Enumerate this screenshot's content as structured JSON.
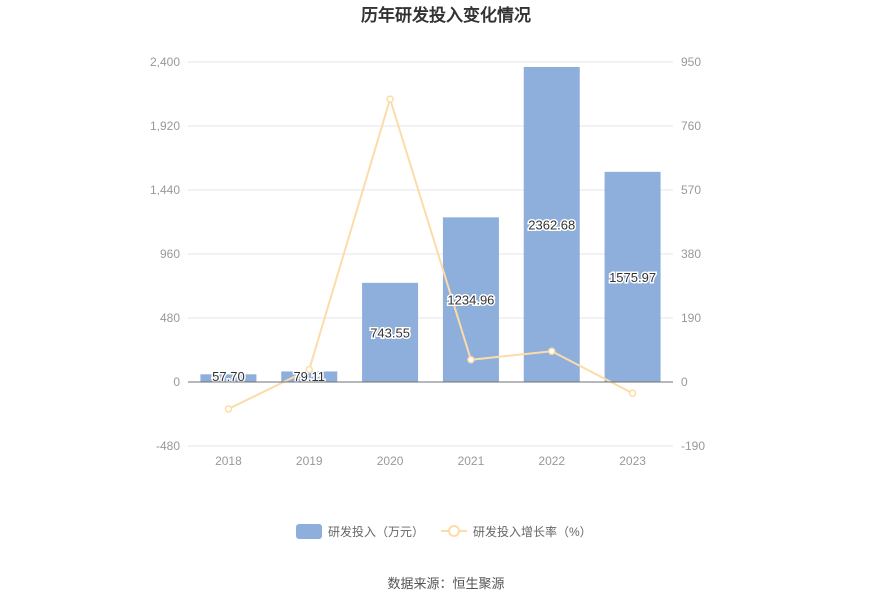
{
  "chart_data": {
    "type": "bar",
    "title": "历年研发投入变化情况",
    "categories": [
      "2018",
      "2019",
      "2020",
      "2021",
      "2022",
      "2023"
    ],
    "series": [
      {
        "name": "研发投入（万元）",
        "type": "bar",
        "axis": "left",
        "values": [
          57.7,
          79.11,
          743.55,
          1234.96,
          2362.68,
          1575.97
        ],
        "labels": [
          "57.70",
          "79.11",
          "743.55",
          "1234.96",
          "2362.68",
          "1575.97"
        ],
        "color": "#8eaedb"
      },
      {
        "name": "研发投入增长率（%）",
        "type": "line",
        "axis": "right",
        "values": [
          -80,
          37.1,
          839.9,
          66.1,
          91.3,
          -33.3
        ],
        "color": "#fcdca8"
      }
    ],
    "y_left": {
      "min": -480,
      "max": 2400,
      "ticks": [
        "-480",
        "0",
        "480",
        "960",
        "1,440",
        "1,920",
        "2,400"
      ],
      "tick_values": [
        -480,
        0,
        480,
        960,
        1440,
        1920,
        2400
      ]
    },
    "y_right": {
      "min": -190,
      "max": 950,
      "ticks": [
        "-190",
        "0",
        "190",
        "380",
        "570",
        "760",
        "950"
      ],
      "tick_values": [
        -190,
        0,
        190,
        380,
        570,
        760,
        950
      ]
    },
    "grid": true,
    "legend": "bottom-center"
  },
  "source": "数据来源：恒生聚源",
  "colors": {
    "grid": "#e3e6ee",
    "axis": "#6e7079",
    "bar": "#8eaedb",
    "line": "#fcdca8"
  }
}
